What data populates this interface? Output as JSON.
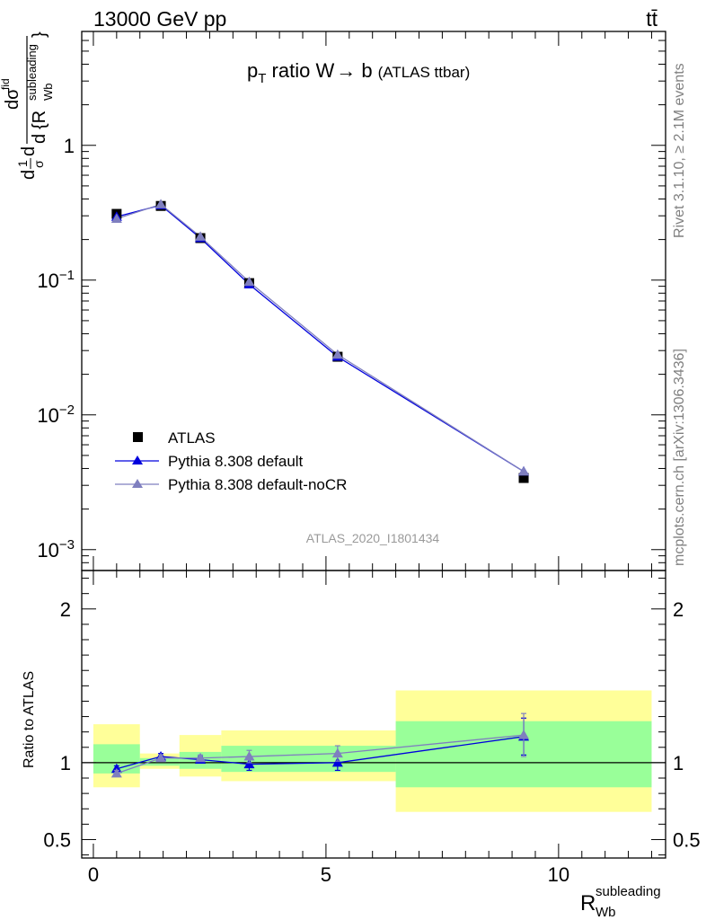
{
  "header": {
    "left": "13000 GeV pp",
    "right": "tt̄"
  },
  "side_labels": {
    "rivet": "Rivet 3.1.10, ≥ 2.1M events",
    "mcplots": "mcplots.cern.ch [arXiv:1306.3436]"
  },
  "chart_data": [
    {
      "type": "line",
      "panel": "main",
      "title": "p_T ratio W → b (ATLAS ttbar)",
      "title_parts": {
        "p": "p",
        "sub": "T",
        "rest": " ratio W",
        "arrow": "→",
        "b": " b",
        "small": "(ATLAS ttbar)"
      },
      "watermark": "ATLAS_2020_I1801434",
      "ylabel": "1/σ dσ/d{R_Wb^subleading}",
      "ylabel_parts": {
        "d1": "d",
        "one": "1",
        "sigma": "σ",
        "d2": "d",
        "dsig": "dσ",
        "den_d": "d",
        "den_R": "{R",
        "den_sub": "Wb",
        "den_sup": "subleading",
        "den_close": "}",
        "fid": "fid"
      },
      "yscale": "log",
      "ylim": [
        0.0007,
        7
      ],
      "xlim": [
        -0.25,
        12.3
      ],
      "yticks": [
        {
          "label": "1",
          "v": 1
        },
        {
          "label": "10",
          "exp": "−1",
          "v": 0.1
        },
        {
          "label": "10",
          "exp": "−2",
          "v": 0.01
        },
        {
          "label": "10",
          "exp": "−3",
          "v": 0.001
        }
      ],
      "legend_position": "lower-left",
      "series": [
        {
          "name": "ATLAS",
          "marker": "square",
          "color": "#000000",
          "x": [
            0.5,
            1.45,
            2.3,
            3.35,
            5.25,
            9.25
          ],
          "y": [
            0.31,
            0.355,
            0.205,
            0.095,
            0.027,
            0.0034
          ]
        },
        {
          "name": "Pythia 8.308 default",
          "marker": "triangle",
          "color": "#0000dd",
          "x": [
            0.5,
            1.45,
            2.3,
            3.35,
            5.25,
            9.25
          ],
          "y": [
            0.295,
            0.36,
            0.205,
            0.093,
            0.027,
            0.0038
          ]
        },
        {
          "name": "Pythia 8.308 default-noCR",
          "marker": "triangle",
          "color": "#7f7fbf",
          "x": [
            0.5,
            1.45,
            2.3,
            3.35,
            5.25,
            9.25
          ],
          "y": [
            0.285,
            0.365,
            0.21,
            0.097,
            0.028,
            0.0038
          ]
        }
      ]
    },
    {
      "type": "line",
      "panel": "ratio",
      "ylabel": "Ratio to ATLAS",
      "xlabel": "R_Wb^subleading",
      "xlabel_parts": {
        "R": "R",
        "sub": "Wb",
        "sup": "subleading"
      },
      "ylim": [
        0.38,
        2.25
      ],
      "xlim": [
        -0.25,
        12.3
      ],
      "yticks": [
        {
          "label": "2",
          "v": 2
        },
        {
          "label": "1",
          "v": 1
        },
        {
          "label": "0.5",
          "v": 0.5
        }
      ],
      "xticks": [
        {
          "label": "0",
          "v": 0
        },
        {
          "label": "5",
          "v": 5
        },
        {
          "label": "10",
          "v": 10
        }
      ],
      "bands": [
        {
          "x0": 0.0,
          "x1": 1.0,
          "green": [
            0.93,
            1.12
          ],
          "yellow": [
            0.84,
            1.25
          ]
        },
        {
          "x0": 1.0,
          "x1": 1.85,
          "green": [
            0.98,
            1.03
          ],
          "yellow": [
            0.96,
            1.06
          ]
        },
        {
          "x0": 1.85,
          "x1": 2.75,
          "green": [
            0.96,
            1.07
          ],
          "yellow": [
            0.91,
            1.18
          ]
        },
        {
          "x0": 2.75,
          "x1": 6.5,
          "green": [
            0.94,
            1.11
          ],
          "yellow": [
            0.88,
            1.21
          ]
        },
        {
          "x0": 6.5,
          "x1": 12.0,
          "green": [
            0.84,
            1.27
          ],
          "yellow": [
            0.68,
            1.47
          ]
        }
      ],
      "series": [
        {
          "name": "Pythia 8.308 default",
          "color": "#0000dd",
          "x": [
            0.5,
            1.45,
            2.3,
            3.35,
            5.25,
            9.25
          ],
          "y": [
            0.96,
            1.04,
            1.02,
            0.99,
            1.0,
            1.17
          ],
          "err": [
            0.02,
            0.02,
            0.02,
            0.04,
            0.05,
            0.12
          ]
        },
        {
          "name": "Pythia 8.308 default-noCR",
          "color": "#7f7fbf",
          "x": [
            0.5,
            1.45,
            2.3,
            3.35,
            5.25,
            9.25
          ],
          "y": [
            0.93,
            1.03,
            1.03,
            1.04,
            1.06,
            1.18
          ],
          "err": [
            0.02,
            0.02,
            0.02,
            0.04,
            0.05,
            0.14
          ]
        }
      ]
    }
  ]
}
